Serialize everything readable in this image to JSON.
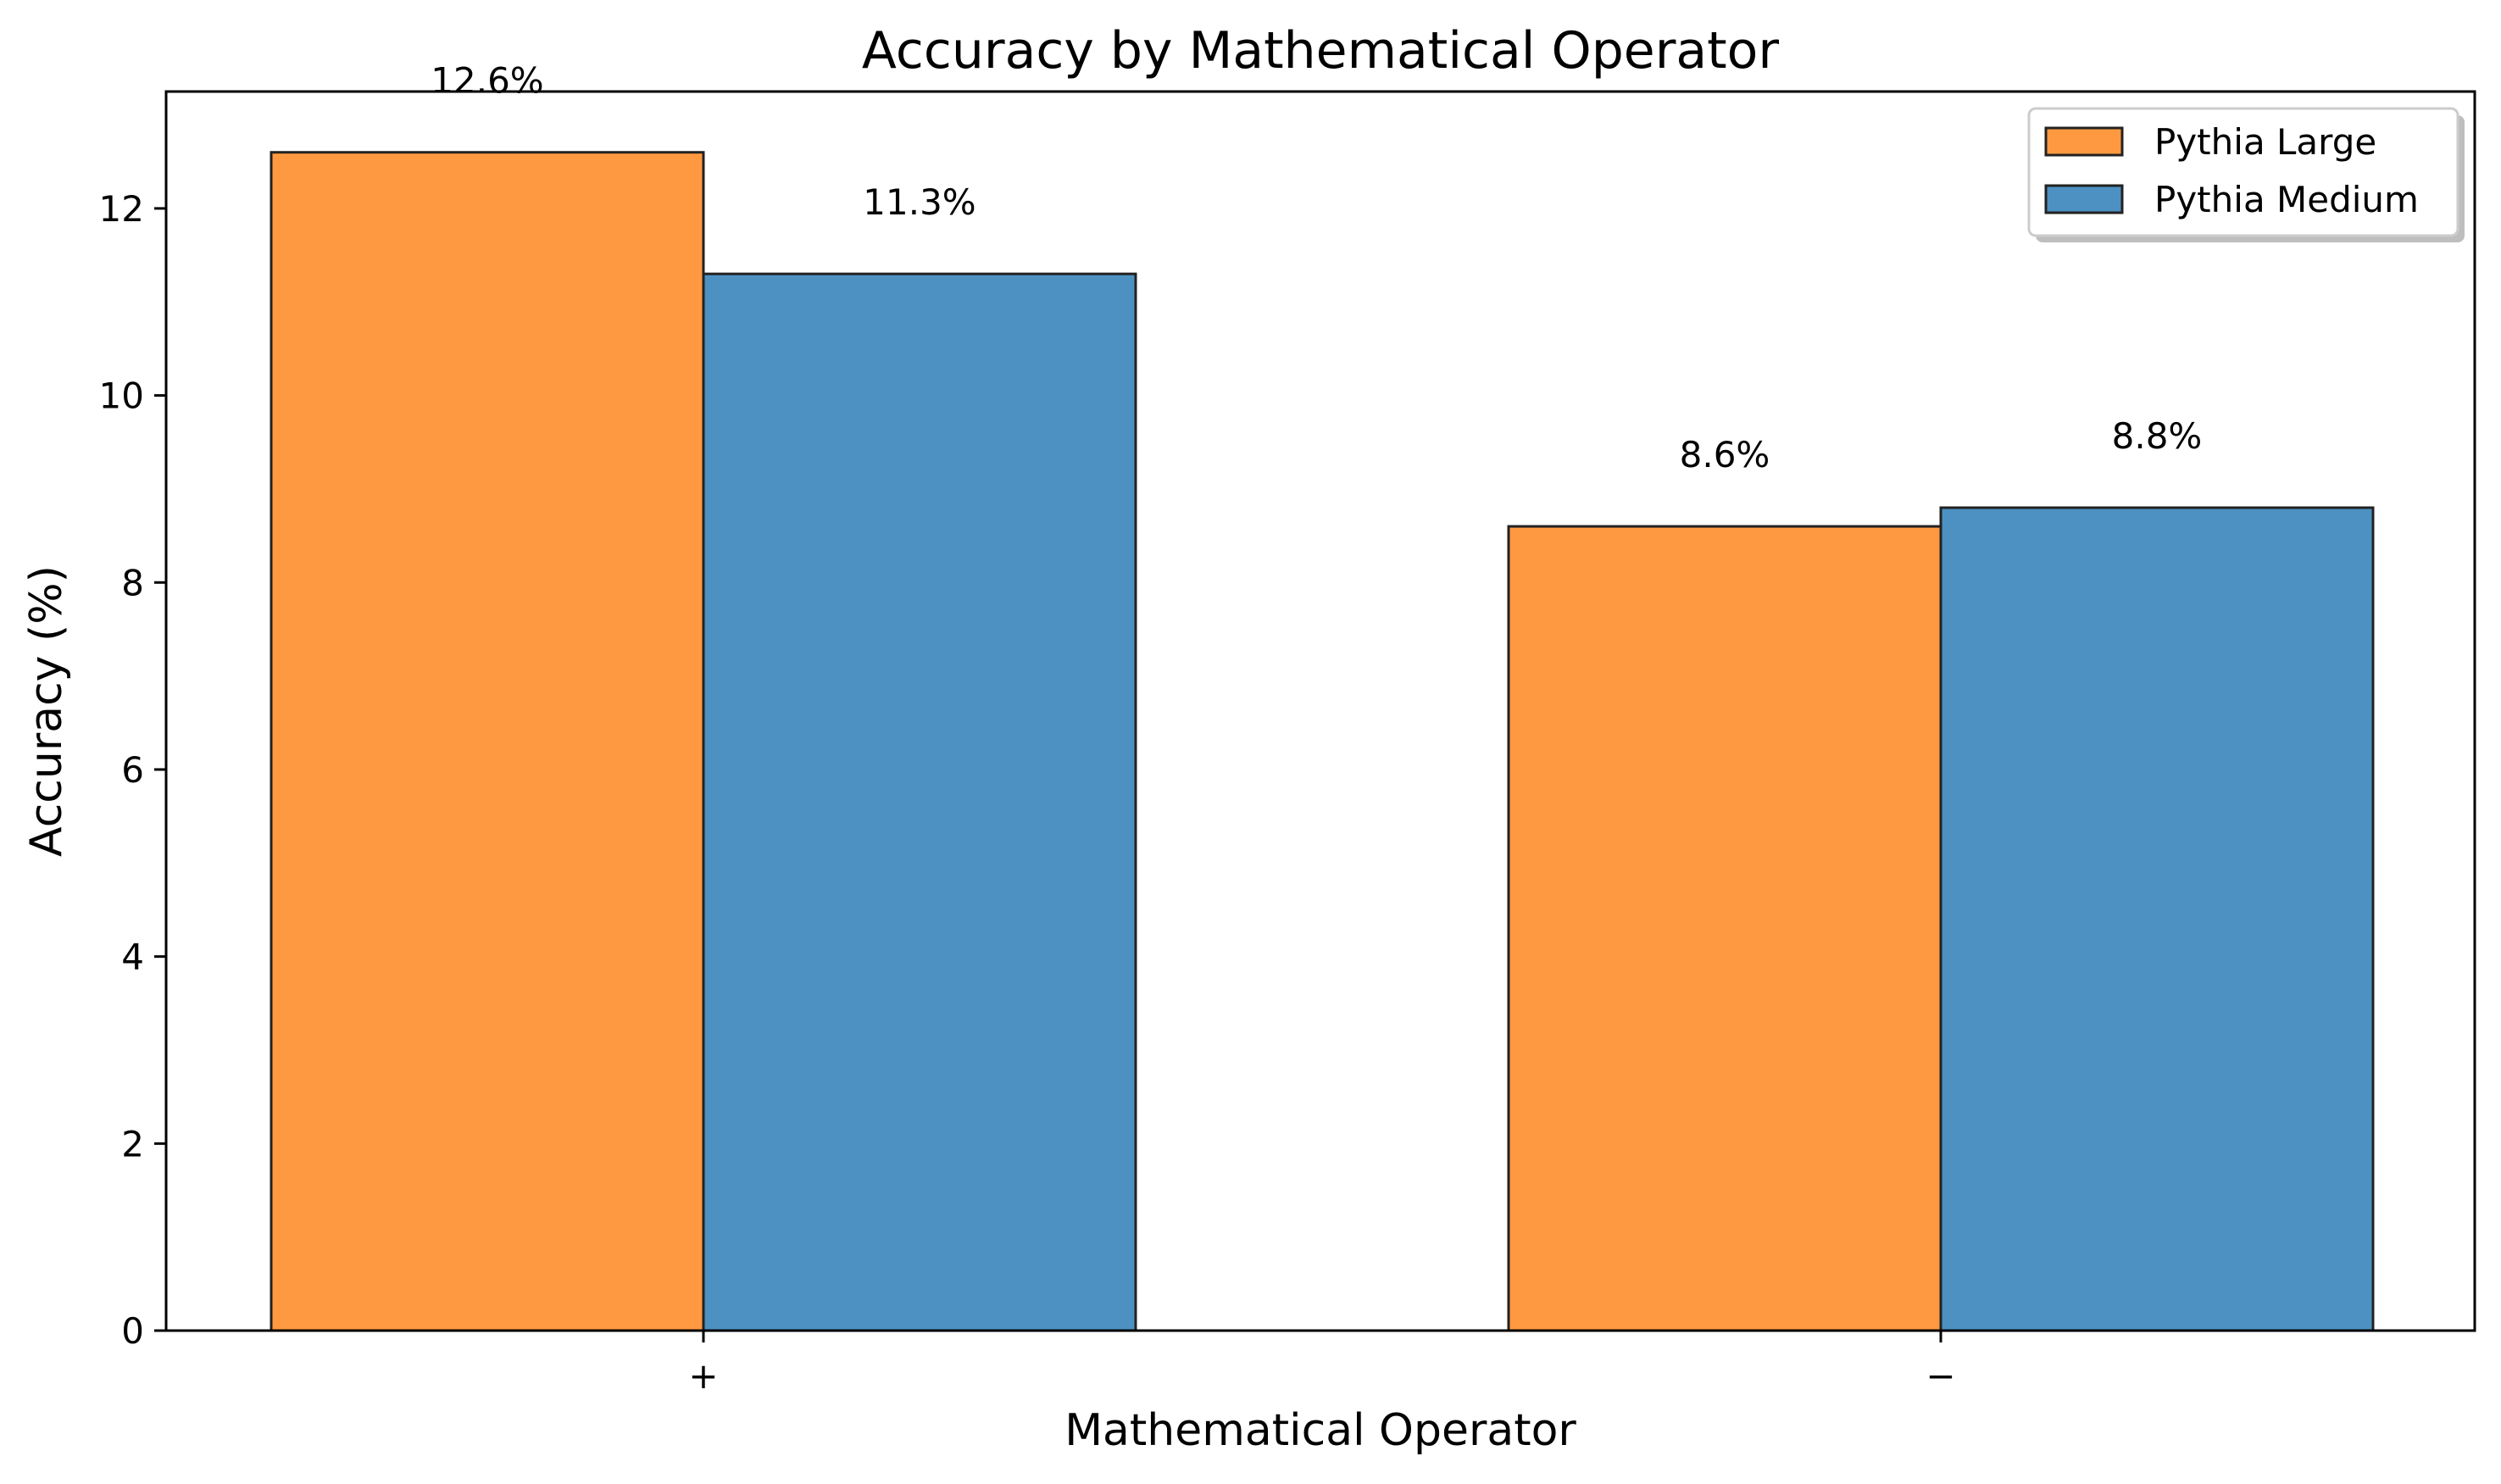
{
  "chart_data": {
    "type": "bar",
    "title": "Accuracy by Mathematical Operator",
    "xlabel": "Mathematical Operator",
    "ylabel": "Accuracy (%)",
    "categories": [
      "+",
      "−"
    ],
    "series": [
      {
        "name": "Pythia Large",
        "values": [
          12.6,
          8.6
        ],
        "labels": [
          "12.6%",
          "8.6%"
        ],
        "color": "#ff9941"
      },
      {
        "name": "Pythia Medium",
        "values": [
          11.3,
          8.8
        ],
        "labels": [
          "11.3%",
          "8.8%"
        ],
        "color": "#4c91c2"
      }
    ],
    "ylim": [
      0,
      13.25
    ],
    "yticks": [
      0,
      2,
      4,
      6,
      8,
      10,
      12
    ],
    "grid": false,
    "legend_position": "top-right"
  }
}
